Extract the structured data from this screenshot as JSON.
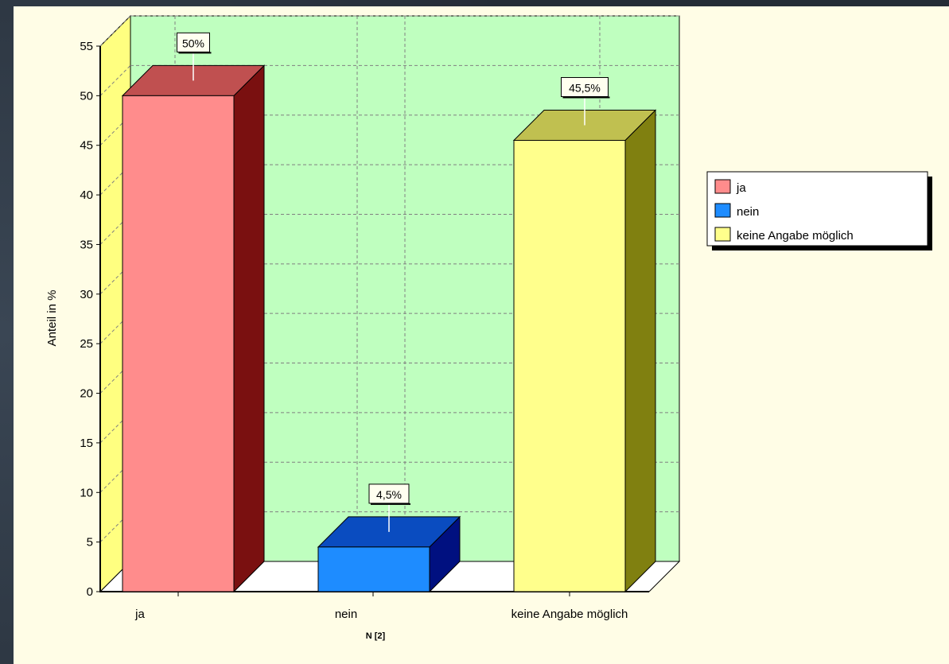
{
  "chart_data": {
    "type": "bar",
    "categories": [
      "ja",
      "nein",
      "keine Angabe möglich"
    ],
    "values": [
      50,
      4.5,
      45.5
    ],
    "value_labels": [
      "50%",
      "4,5%",
      "45,5%"
    ],
    "colors": {
      "front": [
        "#ff8c8c",
        "#1e8cff",
        "#ffff8c"
      ],
      "top": [
        "#c05050",
        "#0a4cc0",
        "#c0c050"
      ],
      "side": [
        "#7a1010",
        "#001080",
        "#808010"
      ]
    },
    "ylabel": "Anteil in %",
    "xlabel": "",
    "ylim": [
      0,
      55
    ],
    "yticks": [
      0,
      5,
      10,
      15,
      20,
      25,
      30,
      35,
      40,
      45,
      50,
      55
    ],
    "grid": true,
    "legend_position": "right",
    "x_footnote": "N [2]"
  }
}
